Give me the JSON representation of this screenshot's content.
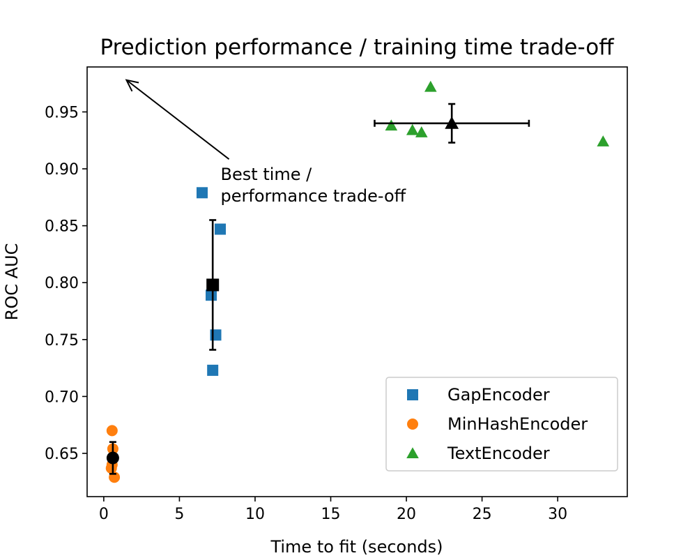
{
  "chart_data": {
    "type": "scatter",
    "title": "Prediction performance / training time trade-off",
    "xlabel": "Time to fit (seconds)",
    "ylabel": "ROC AUC",
    "xlim": [
      -1.1,
      34.6
    ],
    "ylim": [
      0.612,
      0.9895
    ],
    "xticks": [
      0,
      5,
      10,
      15,
      20,
      25,
      30
    ],
    "yticks": [
      0.65,
      0.7,
      0.75,
      0.8,
      0.85,
      0.9,
      0.95
    ],
    "xtick_labels": [
      "0",
      "5",
      "10",
      "15",
      "20",
      "25",
      "30"
    ],
    "ytick_labels": [
      "0.65",
      "0.70",
      "0.75",
      "0.80",
      "0.85",
      "0.90",
      "0.95"
    ],
    "grid": false,
    "legend_position": "lower-right",
    "series": [
      {
        "name": "GapEncoder",
        "marker": "square",
        "color": "#1f77b4",
        "points": [
          [
            6.5,
            0.879
          ],
          [
            7.7,
            0.847
          ],
          [
            7.1,
            0.789
          ],
          [
            7.4,
            0.754
          ],
          [
            7.2,
            0.723
          ]
        ],
        "mean": [
          7.2,
          0.798
        ],
        "xerr": 0.15,
        "yerr": 0.057
      },
      {
        "name": "MinHashEncoder",
        "marker": "circle",
        "color": "#ff7f0e",
        "points": [
          [
            0.55,
            0.67
          ],
          [
            0.6,
            0.654
          ],
          [
            0.55,
            0.64
          ],
          [
            0.5,
            0.637
          ],
          [
            0.7,
            0.629
          ]
        ],
        "mean": [
          0.6,
          0.646
        ],
        "xerr": 0.05,
        "yerr": 0.014
      },
      {
        "name": "TextEncoder",
        "marker": "triangle",
        "color": "#2ca02c",
        "points": [
          [
            21.6,
            0.972
          ],
          [
            19.0,
            0.938
          ],
          [
            20.4,
            0.934
          ],
          [
            21.0,
            0.932
          ],
          [
            33.0,
            0.924
          ]
        ],
        "mean": [
          23.0,
          0.94
        ],
        "xerr": 5.1,
        "yerr": 0.017
      }
    ],
    "annotation": {
      "lines": [
        "Best time /",
        "performance trade-off"
      ],
      "text_at": [
        8.0,
        0.895
      ],
      "arrow_to": [
        1.5,
        0.978
      ]
    }
  }
}
